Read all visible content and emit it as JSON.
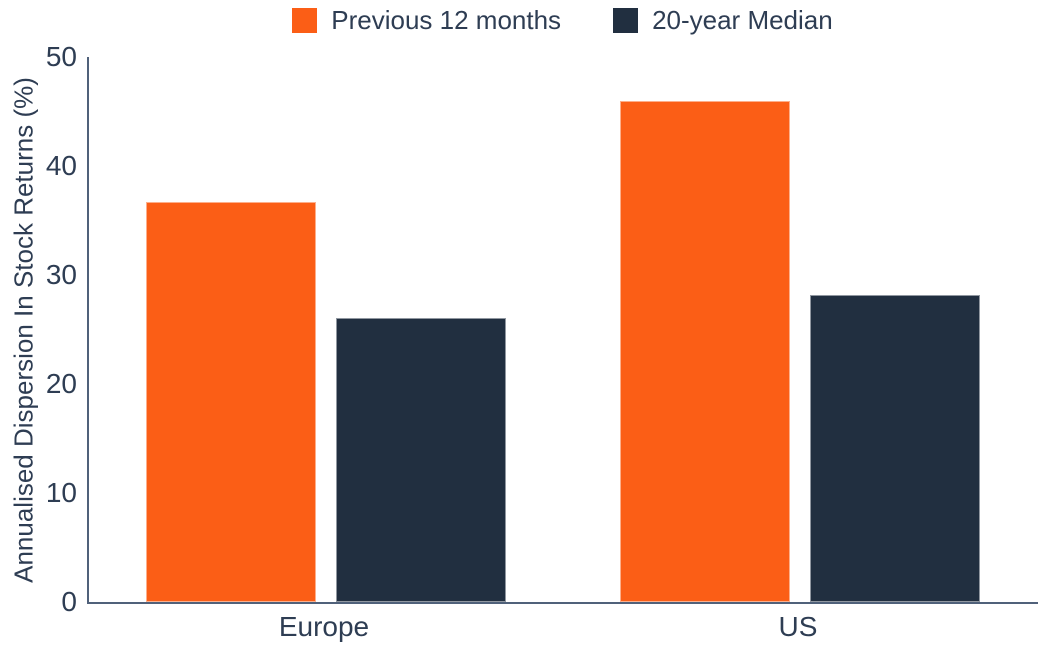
{
  "colors": {
    "series_orange": "#FB5E16",
    "series_navy": "#212F40",
    "text": "#2E3D53",
    "axis_line": "#50617A",
    "background": "#FFFFFF"
  },
  "chart_data": {
    "type": "bar",
    "title": "",
    "categories": [
      "Europe",
      "US"
    ],
    "series": [
      {
        "name": "Previous 12 months",
        "color": "#FB5E16",
        "values": [
          36.7,
          46.0
        ]
      },
      {
        "name": "20-year Median",
        "color": "#212F40",
        "values": [
          26.1,
          28.2
        ]
      }
    ],
    "xlabel": "",
    "ylabel": "Annualised Dispersion In Stock Returns (%)",
    "ylim": [
      0,
      50
    ],
    "yticks": [
      0,
      10,
      20,
      30,
      40,
      50
    ],
    "grid": false,
    "legend_position": "top-center"
  }
}
